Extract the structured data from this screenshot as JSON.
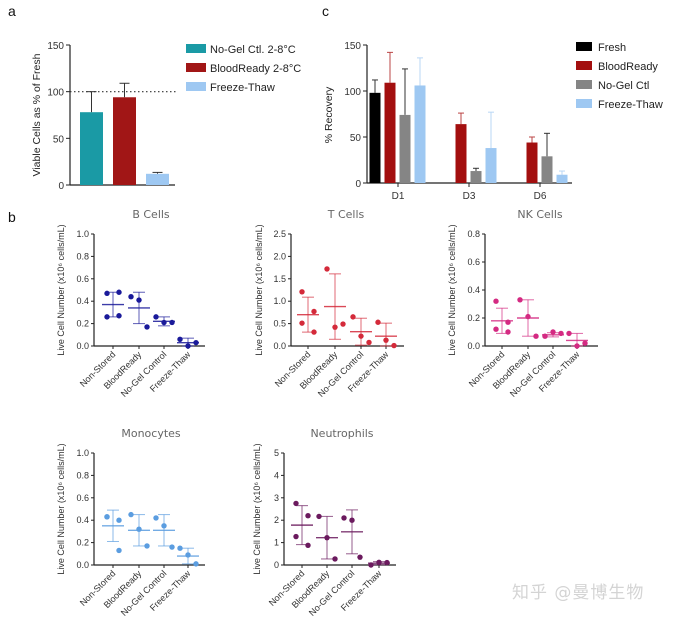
{
  "panel_labels": {
    "a": "a",
    "b": "b",
    "c": "c"
  },
  "watermark": "知乎 @曼博生物",
  "chart_data": [
    {
      "id": "a",
      "type": "bar",
      "title": "",
      "xlabel": "",
      "ylabel": "Viable Cells as % of Fresh",
      "ylim": [
        0,
        150
      ],
      "yticks": [
        0,
        50,
        100,
        150
      ],
      "reference_line": 100,
      "legend_position": "right",
      "series": [
        {
          "name": "No-Gel Ctl. 2-8°C",
          "color": "#1a9aa5",
          "value": 78,
          "error": 22
        },
        {
          "name": "BloodReady    2-8°C",
          "color": "#a11616",
          "value": 94,
          "error": 15
        },
        {
          "name": "Freeze-Thaw",
          "color": "#9ec8f2",
          "value": 12,
          "error": 1.5
        }
      ]
    },
    {
      "id": "c",
      "type": "bar",
      "title": "",
      "xlabel": "",
      "ylabel": "% Recovery",
      "ylim": [
        0,
        150
      ],
      "yticks": [
        0,
        50,
        100,
        150
      ],
      "legend_position": "right",
      "categories": [
        "D1",
        "D3",
        "D6"
      ],
      "series": [
        {
          "name": "Fresh",
          "color": "#000000",
          "values": [
            98,
            null,
            null
          ],
          "errors": [
            14,
            null,
            null
          ]
        },
        {
          "name": "BloodReady",
          "color": "#a30f0f",
          "values": [
            109,
            64,
            44
          ],
          "errors": [
            33,
            12,
            6
          ]
        },
        {
          "name": "No-Gel Ctl",
          "color": "#858585",
          "values": [
            74,
            13,
            29
          ],
          "errors": [
            50,
            3,
            25
          ]
        },
        {
          "name": "Freeze-Thaw",
          "color": "#9ec8f2",
          "values": [
            106,
            38,
            9
          ],
          "errors": [
            30,
            39,
            4
          ]
        }
      ]
    },
    {
      "id": "b-bcells",
      "type": "scatter",
      "title": "B Cells",
      "ylabel": "Live Cell Number (x10⁶ cells/mL)",
      "ylim": [
        0,
        1.0
      ],
      "yticks": [
        "0.0",
        "0.2",
        "0.4",
        "0.6",
        "0.8",
        "1.0"
      ],
      "color": "#1a1a9a",
      "categories": [
        "Non-Stored",
        "BloodReady",
        "No-Gel Control",
        "Freeze-Thaw"
      ],
      "points": [
        [
          0.47,
          0.48,
          0.26,
          0.27
        ],
        [
          0.44,
          0.41,
          0.17
        ],
        [
          0.26,
          0.21,
          0.21
        ],
        [
          0.06,
          0.0,
          0.03
        ]
      ],
      "means": [
        0.37,
        0.34,
        0.22,
        0.03
      ],
      "sd": [
        0.11,
        0.14,
        0.04,
        0.04
      ]
    },
    {
      "id": "b-tcells",
      "type": "scatter",
      "title": "T Cells",
      "ylabel": "Live Cell Number (x10⁶ cells/mL)",
      "ylim": [
        0,
        2.5
      ],
      "yticks": [
        "0.0",
        "0.5",
        "1.0",
        "1.5",
        "2.0",
        "2.5"
      ],
      "color": "#d42a3a",
      "categories": [
        "Non-Stored",
        "BloodReady",
        "No-Gel Control",
        "Freeze-Thaw"
      ],
      "points": [
        [
          1.21,
          0.77,
          0.51,
          0.31
        ],
        [
          1.72,
          0.42,
          0.49
        ],
        [
          0.65,
          0.22,
          0.08
        ],
        [
          0.53,
          0.13,
          0.01
        ]
      ],
      "means": [
        0.7,
        0.88,
        0.32,
        0.22
      ],
      "sd": [
        0.39,
        0.73,
        0.3,
        0.29
      ]
    },
    {
      "id": "b-nkcells",
      "type": "scatter",
      "title": "NK Cells",
      "ylabel": "Live Cell Number  (x10⁶ cells/mL)",
      "ylim": [
        0,
        0.8
      ],
      "yticks": [
        "0.0",
        "0.2",
        "0.4",
        "0.6",
        "0.8"
      ],
      "color": "#d42a82",
      "categories": [
        "Non-Stored",
        "BloodReady",
        "No-Gel Control",
        "Freeze-Thaw"
      ],
      "points": [
        [
          0.32,
          0.17,
          0.12,
          0.1
        ],
        [
          0.33,
          0.21,
          0.07
        ],
        [
          0.07,
          0.1,
          0.09
        ],
        [
          0.09,
          0.0,
          0.02
        ]
      ],
      "means": [
        0.18,
        0.2,
        0.08,
        0.04
      ],
      "sd": [
        0.09,
        0.13,
        0.015,
        0.05
      ]
    },
    {
      "id": "b-monocytes",
      "type": "scatter",
      "title": "Monocytes",
      "ylabel": "Live Cell Number (x10⁶ cells/mL)",
      "ylim": [
        0,
        1.0
      ],
      "yticks": [
        "0.0",
        "0.2",
        "0.4",
        "0.6",
        "0.8",
        "1.0"
      ],
      "color": "#5b9de0",
      "categories": [
        "Non-Stored",
        "BloodReady",
        "No-Gel Control",
        "Freeze-Thaw"
      ],
      "points": [
        [
          0.43,
          0.4,
          0.43,
          0.13
        ],
        [
          0.45,
          0.32,
          0.17
        ],
        [
          0.42,
          0.35,
          0.16
        ],
        [
          0.15,
          0.09,
          0.01
        ]
      ],
      "means": [
        0.35,
        0.31,
        0.31,
        0.08
      ],
      "sd": [
        0.14,
        0.14,
        0.14,
        0.07
      ]
    },
    {
      "id": "b-neutrophils",
      "type": "scatter",
      "title": "Neutrophils",
      "ylabel": "Live Cell Number (x10⁶ cells/mL)",
      "ylim": [
        0,
        5
      ],
      "yticks": [
        "0",
        "1",
        "2",
        "3",
        "4",
        "5"
      ],
      "color": "#6b1a5e",
      "categories": [
        "Non-Stored",
        "BloodReady",
        "No-Gel Control",
        "Freeze-Thaw"
      ],
      "points": [
        [
          2.75,
          2.2,
          1.27,
          0.88
        ],
        [
          2.17,
          1.22,
          0.27
        ],
        [
          2.1,
          2.0,
          0.35
        ],
        [
          0.0,
          0.12,
          0.11
        ]
      ],
      "means": [
        1.78,
        1.22,
        1.48,
        0.08
      ],
      "sd": [
        0.87,
        0.95,
        0.98,
        0.07
      ]
    }
  ]
}
